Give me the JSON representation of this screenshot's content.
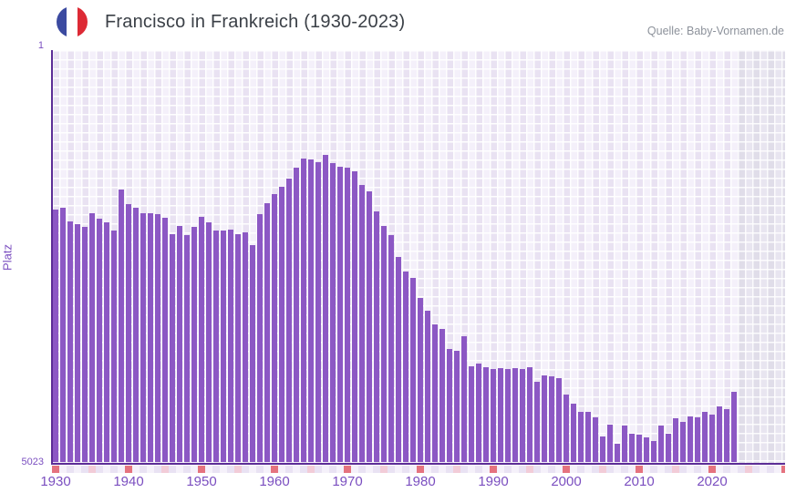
{
  "header": {
    "title": "Francisco in Frankreich (1930-2023)",
    "source": "Quelle: Baby-Vornamen.de",
    "flag_icon": "french-flag-circle"
  },
  "colors": {
    "bar": "#8c58c4",
    "axis_line": "#5c2d96",
    "tick_text": "#7b4fc0",
    "title_text": "#3b4047",
    "source_text": "#8d929b",
    "plot_cell_dark": "#e9e2f2",
    "plot_cell_light": "#f4f0fa",
    "nodata_cell_dark": "#e0dde9",
    "nodata_cell_light": "#e8e5f0",
    "strip_decade_red": "#e5737f",
    "strip_half_decade_pink": "#f2ccd8",
    "strip_cell_dark": "#e9e2f3",
    "strip_cell_light": "#f5f1fa",
    "flag_blue": "#3b4aa0",
    "flag_red": "#dd2a35"
  },
  "yaxis": {
    "label": "Platz",
    "top_tick": "1",
    "bottom_tick": "5023"
  },
  "chart_data": {
    "type": "bar",
    "title": "Francisco in Frankreich (1930-2023)",
    "ylabel": "Platz",
    "xlabel": "",
    "y_inverted": true,
    "ylim": [
      1,
      5023
    ],
    "grid": true,
    "xticks": [
      1930,
      1940,
      1950,
      1960,
      1970,
      1980,
      1990,
      2000,
      2010,
      2020
    ],
    "x": [
      1930,
      1931,
      1932,
      1933,
      1934,
      1935,
      1936,
      1937,
      1938,
      1939,
      1940,
      1941,
      1942,
      1943,
      1944,
      1945,
      1946,
      1947,
      1948,
      1949,
      1950,
      1951,
      1952,
      1953,
      1954,
      1955,
      1956,
      1957,
      1958,
      1959,
      1960,
      1961,
      1962,
      1963,
      1964,
      1965,
      1966,
      1967,
      1968,
      1969,
      1970,
      1971,
      1972,
      1973,
      1974,
      1975,
      1976,
      1977,
      1978,
      1979,
      1980,
      1981,
      1982,
      1983,
      1984,
      1985,
      1986,
      1987,
      1988,
      1989,
      1990,
      1991,
      1992,
      1993,
      1994,
      1995,
      1996,
      1997,
      1998,
      1999,
      2000,
      2001,
      2002,
      2003,
      2004,
      2005,
      2006,
      2007,
      2008,
      2009,
      2010,
      2011,
      2012,
      2013,
      2014,
      2015,
      2016,
      2017,
      2018,
      2019,
      2020,
      2021,
      2022,
      2023
    ],
    "values": [
      1941,
      1919,
      2085,
      2119,
      2152,
      1986,
      2052,
      2096,
      2196,
      1697,
      1874,
      1919,
      1986,
      1986,
      1997,
      2041,
      2241,
      2141,
      2252,
      2152,
      2030,
      2096,
      2196,
      2196,
      2185,
      2241,
      2218,
      2374,
      1997,
      1863,
      1752,
      1664,
      1564,
      1431,
      1320,
      1331,
      1364,
      1276,
      1376,
      1420,
      1431,
      1475,
      1642,
      1719,
      1963,
      2141,
      2252,
      2518,
      2695,
      2773,
      3017,
      3172,
      3338,
      3394,
      3638,
      3660,
      3482,
      3848,
      3815,
      3859,
      3881,
      3870,
      3881,
      3870,
      3881,
      3859,
      4037,
      3959,
      3970,
      3992,
      4192,
      4302,
      4402,
      4402,
      4469,
      4712,
      4557,
      4801,
      4579,
      4668,
      4690,
      4723,
      4757,
      4568,
      4668,
      4490,
      4524,
      4457,
      4469,
      4402,
      4435,
      4346,
      4369,
      4158
    ],
    "no_data_zone": "after last bar to right edge"
  }
}
